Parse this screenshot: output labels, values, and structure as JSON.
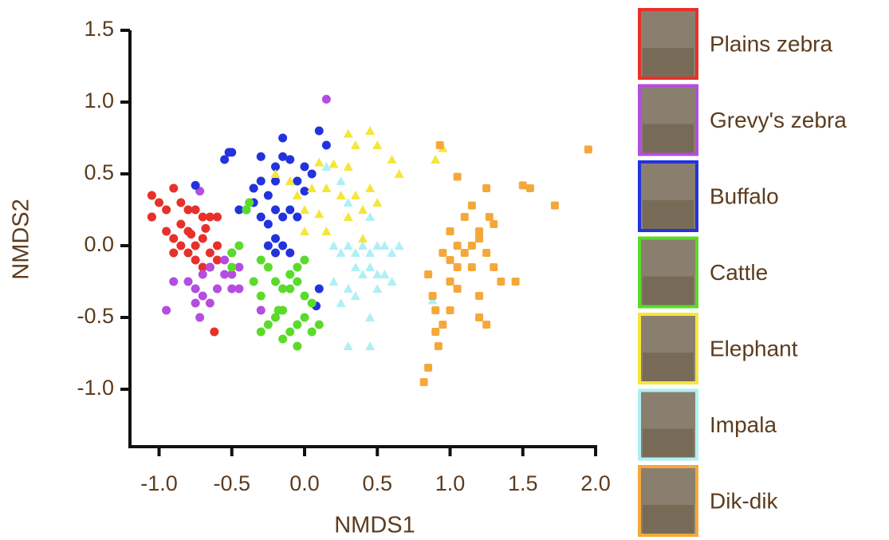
{
  "chart_data": {
    "type": "scatter",
    "xlabel": "NMDS1",
    "ylabel": "NMDS2",
    "xlim": [
      -1.2,
      2.0
    ],
    "ylim": [
      -1.4,
      1.5
    ],
    "xticks": [
      {
        "value": -1,
        "label": "-1.0"
      },
      -0.5,
      {
        "value": 0,
        "label": "0.0"
      },
      0.5,
      {
        "value": 1,
        "label": "1.0"
      },
      1.5,
      {
        "value": 2,
        "label": "2.0"
      }
    ],
    "yticks": [
      {
        "value": -1,
        "label": "-1.0"
      },
      -0.5,
      {
        "value": 0,
        "label": "0.0"
      },
      0.5,
      {
        "value": 1,
        "label": "1.0"
      },
      1.5
    ],
    "grid": false,
    "series": [
      {
        "name": "Plains zebra",
        "color": "#e8302a",
        "marker": "circle",
        "x": [
          -1.05,
          -1.05,
          -1.0,
          -0.95,
          -0.9,
          -0.85,
          -0.8,
          -0.75,
          -0.7,
          -0.65,
          -0.6,
          -0.95,
          -0.9,
          -0.85,
          -0.8,
          -0.75,
          -0.7,
          -0.65,
          -0.6,
          -0.8,
          -0.9,
          -0.75,
          -0.7,
          -0.65,
          -0.6,
          -1.05,
          -0.85,
          -0.62,
          -0.78,
          -0.68
        ],
        "y": [
          0.35,
          0.2,
          0.3,
          0.25,
          0.4,
          0.3,
          0.25,
          0.25,
          0.2,
          0.2,
          0.2,
          0.1,
          0.05,
          0.0,
          0.1,
          0.0,
          0.05,
          -0.05,
          -0.1,
          -0.05,
          -0.05,
          -0.1,
          -0.15,
          -0.15,
          0.0,
          0.2,
          0.15,
          -0.6,
          0.08,
          0.12
        ]
      },
      {
        "name": "Grevy's zebra",
        "color": "#b44de0",
        "marker": "circle",
        "x": [
          0.15,
          -0.72,
          -0.95,
          -0.9,
          -0.8,
          -0.75,
          -0.7,
          -0.7,
          -0.65,
          -0.55,
          -0.5,
          -0.5,
          -0.55,
          -0.5,
          -0.45,
          -0.72,
          -0.3,
          -0.65,
          -0.6,
          -0.45,
          -0.75
        ],
        "y": [
          1.02,
          0.38,
          -0.45,
          -0.25,
          -0.25,
          -0.3,
          -0.35,
          -0.2,
          -0.15,
          -0.2,
          -0.2,
          -0.3,
          -0.1,
          -0.05,
          -0.15,
          -0.5,
          -0.45,
          -0.4,
          -0.3,
          -0.3,
          -0.4
        ]
      },
      {
        "name": "Buffalo",
        "color": "#2233dd",
        "marker": "circle",
        "x": [
          -0.55,
          -0.52,
          -0.5,
          -0.3,
          -0.2,
          -0.15,
          -0.1,
          -0.15,
          0.1,
          0.15,
          -0.3,
          -0.35,
          -0.25,
          -0.2,
          -0.05,
          0.0,
          0.05,
          -0.35,
          -0.4,
          -0.45,
          -0.3,
          -0.25,
          -0.2,
          -0.15,
          -0.1,
          -0.05,
          -0.2,
          -0.25,
          -0.15,
          -0.1,
          -0.2,
          -0.75,
          0.08,
          0.1,
          0.0
        ],
        "y": [
          0.6,
          0.65,
          0.65,
          0.62,
          0.55,
          0.62,
          0.6,
          0.75,
          0.8,
          0.7,
          0.45,
          0.4,
          0.35,
          0.45,
          0.45,
          0.55,
          0.5,
          0.3,
          0.25,
          0.25,
          0.2,
          0.15,
          0.25,
          0.2,
          0.25,
          0.2,
          0.05,
          0.0,
          0.0,
          -0.05,
          -0.05,
          0.42,
          -0.42,
          -0.3,
          0.38
        ]
      },
      {
        "name": "Cattle",
        "color": "#5adb2a",
        "marker": "circle",
        "x": [
          -0.45,
          -0.5,
          -0.4,
          -0.38,
          -0.3,
          -0.25,
          -0.2,
          -0.15,
          -0.1,
          -0.05,
          0.0,
          -0.05,
          -0.1,
          -0.15,
          -0.2,
          -0.25,
          -0.3,
          -0.1,
          -0.05,
          0.0,
          0.05,
          0.1,
          -0.05,
          -0.15,
          -0.35,
          -0.3,
          -0.5,
          0.0,
          0.05,
          -0.18
        ],
        "y": [
          0.0,
          -0.05,
          0.25,
          0.3,
          -0.1,
          -0.15,
          -0.25,
          -0.3,
          -0.2,
          -0.15,
          -0.1,
          -0.25,
          -0.3,
          -0.45,
          -0.5,
          -0.55,
          -0.6,
          -0.6,
          -0.55,
          -0.5,
          -0.6,
          -0.55,
          -0.7,
          -0.65,
          -0.25,
          -0.35,
          -0.15,
          -0.35,
          -0.4,
          -0.45
        ]
      },
      {
        "name": "Elephant",
        "color": "#f5e63a",
        "marker": "triangle",
        "x": [
          0.3,
          0.45,
          0.35,
          0.5,
          0.6,
          0.65,
          0.9,
          0.95,
          0.1,
          0.2,
          0.3,
          -0.2,
          -0.1,
          -0.05,
          0.05,
          0.15,
          0.25,
          0.35,
          0.45,
          0.5,
          0.0,
          0.1,
          0.3,
          0.4,
          0.15,
          0.0,
          0.4
        ],
        "y": [
          0.78,
          0.8,
          0.7,
          0.7,
          0.6,
          0.5,
          0.6,
          0.68,
          0.58,
          0.57,
          0.55,
          0.5,
          0.45,
          0.35,
          0.4,
          0.4,
          0.35,
          0.35,
          0.4,
          0.3,
          0.25,
          0.22,
          0.2,
          0.25,
          0.1,
          0.1,
          0.05
        ]
      },
      {
        "name": "Impala",
        "color": "#aef0f5",
        "marker": "triangle",
        "x": [
          0.15,
          0.25,
          0.3,
          0.45,
          0.2,
          0.25,
          0.3,
          0.35,
          0.4,
          0.45,
          0.5,
          0.55,
          0.6,
          0.65,
          0.35,
          0.4,
          0.45,
          0.5,
          0.55,
          0.6,
          0.3,
          0.35,
          0.25,
          0.45,
          0.3,
          0.45,
          0.88,
          0.2,
          0.5
        ],
        "y": [
          0.55,
          0.45,
          0.3,
          0.2,
          0.0,
          -0.05,
          0.0,
          -0.05,
          0.0,
          -0.05,
          0.0,
          0.0,
          -0.05,
          0.0,
          -0.15,
          -0.2,
          -0.15,
          -0.2,
          -0.2,
          -0.25,
          -0.3,
          -0.35,
          -0.4,
          -0.5,
          -0.7,
          -0.7,
          -0.38,
          -0.25,
          -0.3
        ]
      },
      {
        "name": "Dik-dik",
        "color": "#f5a83a",
        "marker": "square",
        "x": [
          1.95,
          0.93,
          1.05,
          1.25,
          1.5,
          1.55,
          1.72,
          1.1,
          1.15,
          1.2,
          1.27,
          1.3,
          1.0,
          1.05,
          1.1,
          1.15,
          1.25,
          1.2,
          0.95,
          1.0,
          1.05,
          1.15,
          1.3,
          1.35,
          1.45,
          0.85,
          1.0,
          1.05,
          1.2,
          0.9,
          0.95,
          0.9,
          0.92,
          0.85,
          0.82,
          1.2,
          1.25,
          0.88,
          1.0
        ],
        "y": [
          0.67,
          0.7,
          0.48,
          0.4,
          0.42,
          0.4,
          0.28,
          0.2,
          0.28,
          0.1,
          0.2,
          0.15,
          0.1,
          0.0,
          -0.05,
          0.0,
          -0.05,
          0.05,
          -0.05,
          -0.1,
          -0.15,
          -0.15,
          -0.15,
          -0.25,
          -0.25,
          -0.2,
          -0.25,
          -0.3,
          -0.35,
          -0.45,
          -0.55,
          -0.6,
          -0.7,
          -0.85,
          -0.95,
          -0.5,
          -0.55,
          -0.35,
          -0.45
        ]
      }
    ]
  }
}
